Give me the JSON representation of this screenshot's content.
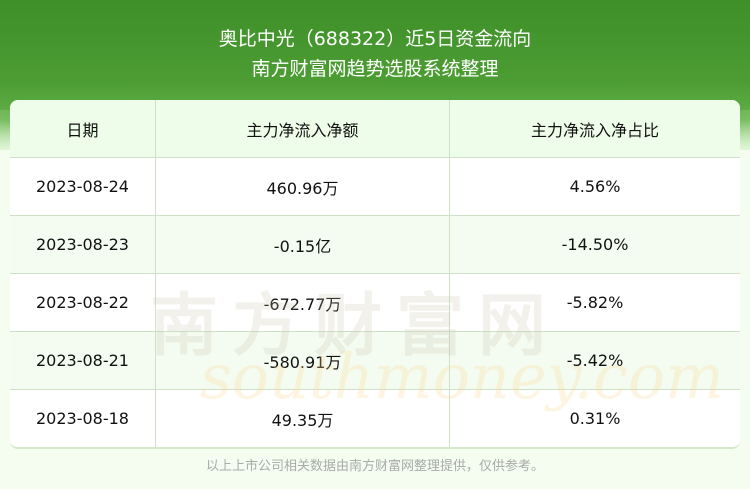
{
  "header": {
    "title": "奥比中光（688322）近5日资金流向",
    "subtitle": "南方财富网趋势选股系统整理"
  },
  "table": {
    "columns": [
      "日期",
      "主力净流入净额",
      "主力净流入净占比"
    ],
    "rows": [
      [
        "2023-08-24",
        "460.96万",
        "4.56%"
      ],
      [
        "2023-08-23",
        "-0.15亿",
        "-14.50%"
      ],
      [
        "2023-08-22",
        "-672.77万",
        "-5.82%"
      ],
      [
        "2023-08-21",
        "-580.91万",
        "-5.42%"
      ],
      [
        "2023-08-18",
        "49.35万",
        "0.31%"
      ]
    ]
  },
  "watermark": {
    "cn": "南方财富网",
    "en": "southmoney.com"
  },
  "footer": "以上上市公司相关数据由南方财富网整理提供，仅供参考。"
}
